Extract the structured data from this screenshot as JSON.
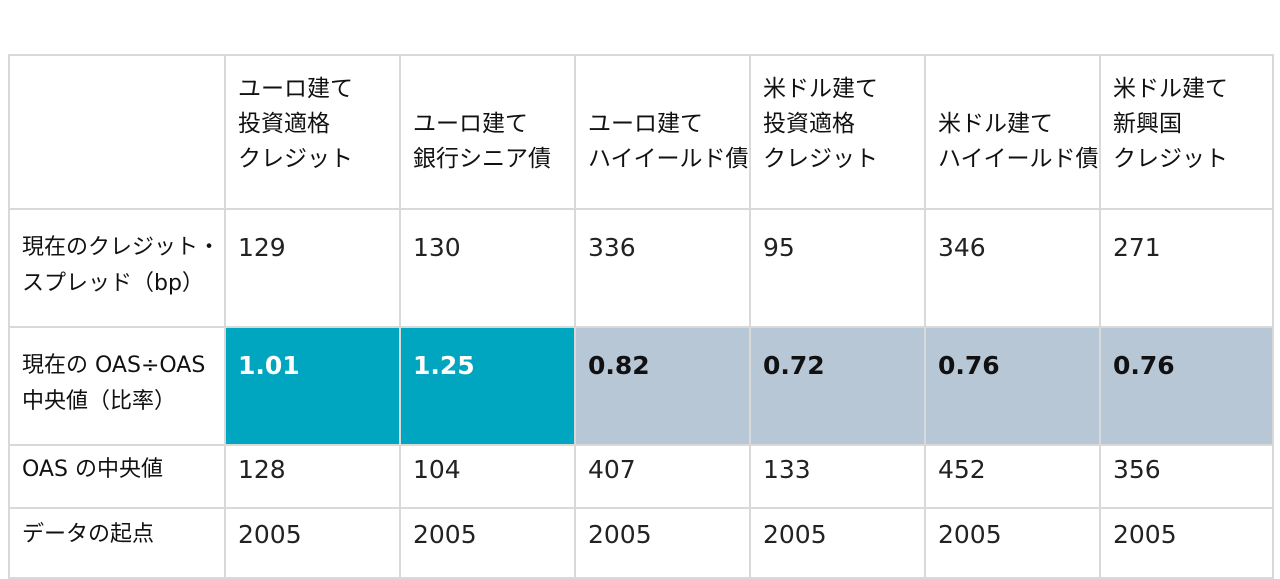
{
  "table": {
    "headers": [
      "",
      "ユーロ建て\n投資適格\nクレジット",
      "\nユーロ建て\n銀行シニア債",
      "\nユーロ建て\nハイイールド債",
      "米ドル建て\n投資適格\nクレジット",
      "\n米ドル建て\nハイイールド債",
      "米ドル建て\n新興国\nクレジット"
    ],
    "rows": [
      {
        "label": "現在のクレジット・\nスプレッド（bp）",
        "values": [
          "129",
          "130",
          "336",
          "95",
          "346",
          "271"
        ]
      },
      {
        "label": "現在の OAS÷OAS\n中央値（比率）",
        "values": [
          "1.01",
          "1.25",
          "0.82",
          "0.72",
          "0.76",
          "0.76"
        ]
      },
      {
        "label": "OAS の中央値",
        "values": [
          "128",
          "104",
          "407",
          "133",
          "452",
          "356"
        ]
      },
      {
        "label": "データの起点",
        "values": [
          "2005",
          "2005",
          "2005",
          "2005",
          "2005",
          "2005"
        ]
      }
    ],
    "highlight_colors": {
      "above_median": "#00a5c0",
      "below_median": "#b8c7d6"
    }
  }
}
